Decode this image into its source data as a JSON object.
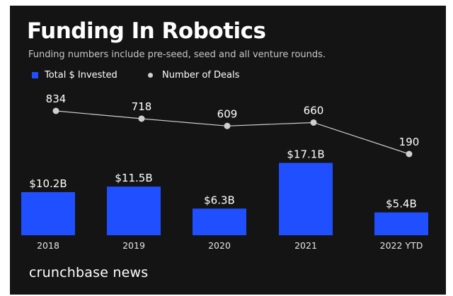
{
  "header": {
    "title": "Funding In Robotics",
    "subtitle": "Funding numbers include pre-seed, seed and all venture rounds."
  },
  "legend": {
    "bar_label": "Total $ Invested",
    "line_label": "Number of Deals"
  },
  "footer": {
    "brand": "crunchbase news"
  },
  "colors": {
    "bar": "#1f4fff",
    "line": "#cfcfcf",
    "background": "#141414",
    "text": "#ffffff"
  },
  "chart_data": {
    "type": "bar",
    "title": "Funding In Robotics",
    "categories": [
      "2018",
      "2019",
      "2020",
      "2021",
      "2022 YTD"
    ],
    "series": [
      {
        "name": "Total $ Invested",
        "kind": "bar",
        "values": [
          10.2,
          11.5,
          6.3,
          17.1,
          5.4
        ],
        "labels": [
          "$10.2B",
          "$11.5B",
          "$6.3B",
          "$17.1B",
          "$5.4B"
        ],
        "unit": "$B"
      },
      {
        "name": "Number of Deals",
        "kind": "line",
        "values": [
          834,
          718,
          609,
          660,
          190
        ],
        "labels": [
          "834",
          "718",
          "609",
          "660",
          "190"
        ]
      }
    ],
    "xlabel": "",
    "ylabel": "",
    "grid": false,
    "legend_position": "top-left"
  }
}
